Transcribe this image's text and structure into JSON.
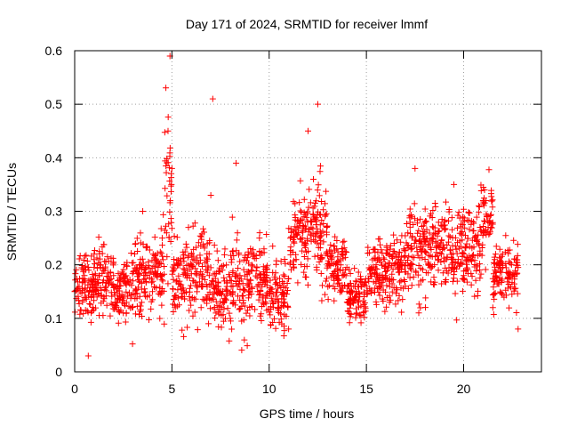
{
  "chart_data": {
    "type": "scatter",
    "title": "Day 171 of 2024, SRMTID for receiver lmmf",
    "xlabel": "GPS time / hours",
    "ylabel": "SRMTID / TECUs",
    "xlim": [
      0,
      24
    ],
    "ylim": [
      0,
      0.6
    ],
    "xticks": [
      0,
      5,
      10,
      15,
      20
    ],
    "yticks": [
      0,
      0.1,
      0.2,
      0.3,
      0.4,
      0.5,
      0.6
    ],
    "xtick_labels": [
      "0",
      "5",
      "10",
      "15",
      "20"
    ],
    "ytick_labels": [
      "0",
      "0.1",
      "0.2",
      "0.3",
      "0.4",
      "0.5",
      "0.6"
    ],
    "grid": true,
    "marker": "+",
    "color": "#ff0000",
    "x_extent_hours": [
      0,
      22.8
    ],
    "sample_points": [
      {
        "x": 0.0,
        "y": 0.15
      },
      {
        "x": 0.5,
        "y": 0.18
      },
      {
        "x": 0.7,
        "y": 0.03
      },
      {
        "x": 1.0,
        "y": 0.22
      },
      {
        "x": 1.5,
        "y": 0.14
      },
      {
        "x": 2.0,
        "y": 0.18
      },
      {
        "x": 2.5,
        "y": 0.11
      },
      {
        "x": 3.0,
        "y": 0.17
      },
      {
        "x": 3.5,
        "y": 0.3
      },
      {
        "x": 4.0,
        "y": 0.15
      },
      {
        "x": 4.5,
        "y": 0.25
      },
      {
        "x": 4.8,
        "y": 0.45
      },
      {
        "x": 4.9,
        "y": 0.59
      },
      {
        "x": 5.0,
        "y": 0.38
      },
      {
        "x": 5.5,
        "y": 0.14
      },
      {
        "x": 6.0,
        "y": 0.2
      },
      {
        "x": 6.5,
        "y": 0.12
      },
      {
        "x": 7.0,
        "y": 0.33
      },
      {
        "x": 7.1,
        "y": 0.51
      },
      {
        "x": 7.5,
        "y": 0.15
      },
      {
        "x": 8.0,
        "y": 0.1
      },
      {
        "x": 8.3,
        "y": 0.39
      },
      {
        "x": 8.5,
        "y": 0.18
      },
      {
        "x": 9.0,
        "y": 0.15
      },
      {
        "x": 9.5,
        "y": 0.25
      },
      {
        "x": 10.0,
        "y": 0.15
      },
      {
        "x": 10.5,
        "y": 0.12
      },
      {
        "x": 11.0,
        "y": 0.08
      },
      {
        "x": 11.5,
        "y": 0.26
      },
      {
        "x": 12.0,
        "y": 0.45
      },
      {
        "x": 12.5,
        "y": 0.5
      },
      {
        "x": 13.0,
        "y": 0.22
      },
      {
        "x": 13.5,
        "y": 0.2
      },
      {
        "x": 14.0,
        "y": 0.15
      },
      {
        "x": 14.5,
        "y": 0.11
      },
      {
        "x": 15.0,
        "y": 0.16
      },
      {
        "x": 15.5,
        "y": 0.2
      },
      {
        "x": 16.0,
        "y": 0.18
      },
      {
        "x": 16.5,
        "y": 0.22
      },
      {
        "x": 17.0,
        "y": 0.16
      },
      {
        "x": 17.5,
        "y": 0.38
      },
      {
        "x": 18.0,
        "y": 0.25
      },
      {
        "x": 18.5,
        "y": 0.2
      },
      {
        "x": 19.0,
        "y": 0.28
      },
      {
        "x": 19.5,
        "y": 0.35
      },
      {
        "x": 20.0,
        "y": 0.18
      },
      {
        "x": 20.5,
        "y": 0.28
      },
      {
        "x": 21.0,
        "y": 0.32
      },
      {
        "x": 21.5,
        "y": 0.12
      },
      {
        "x": 22.0,
        "y": 0.22
      },
      {
        "x": 22.5,
        "y": 0.18
      },
      {
        "x": 22.8,
        "y": 0.08
      }
    ],
    "clusters": [
      {
        "x_start": 0.0,
        "x_end": 1.0,
        "y_center": 0.16,
        "y_spread": 0.05
      },
      {
        "x_start": 1.0,
        "x_end": 2.0,
        "y_center": 0.17,
        "y_spread": 0.05
      },
      {
        "x_start": 2.0,
        "x_end": 3.0,
        "y_center": 0.15,
        "y_spread": 0.05
      },
      {
        "x_start": 3.0,
        "x_end": 4.0,
        "y_center": 0.18,
        "y_spread": 0.06
      },
      {
        "x_start": 4.0,
        "x_end": 4.6,
        "y_center": 0.19,
        "y_spread": 0.06
      },
      {
        "x_start": 4.6,
        "x_end": 5.0,
        "y_center": 0.34,
        "y_spread": 0.12
      },
      {
        "x_start": 5.0,
        "x_end": 6.0,
        "y_center": 0.17,
        "y_spread": 0.06
      },
      {
        "x_start": 6.0,
        "x_end": 7.0,
        "y_center": 0.18,
        "y_spread": 0.07
      },
      {
        "x_start": 7.0,
        "x_end": 8.0,
        "y_center": 0.15,
        "y_spread": 0.06
      },
      {
        "x_start": 8.0,
        "x_end": 9.0,
        "y_center": 0.16,
        "y_spread": 0.07
      },
      {
        "x_start": 9.0,
        "x_end": 10.0,
        "y_center": 0.17,
        "y_spread": 0.06
      },
      {
        "x_start": 10.0,
        "x_end": 11.0,
        "y_center": 0.14,
        "y_spread": 0.05
      },
      {
        "x_start": 11.0,
        "x_end": 12.0,
        "y_center": 0.25,
        "y_spread": 0.07
      },
      {
        "x_start": 12.0,
        "x_end": 13.0,
        "y_center": 0.27,
        "y_spread": 0.08
      },
      {
        "x_start": 13.0,
        "x_end": 14.0,
        "y_center": 0.19,
        "y_spread": 0.05
      },
      {
        "x_start": 14.0,
        "x_end": 15.0,
        "y_center": 0.14,
        "y_spread": 0.04
      },
      {
        "x_start": 15.0,
        "x_end": 16.0,
        "y_center": 0.18,
        "y_spread": 0.05
      },
      {
        "x_start": 16.0,
        "x_end": 17.0,
        "y_center": 0.19,
        "y_spread": 0.05
      },
      {
        "x_start": 17.0,
        "x_end": 18.0,
        "y_center": 0.22,
        "y_spread": 0.07
      },
      {
        "x_start": 18.0,
        "x_end": 19.0,
        "y_center": 0.24,
        "y_spread": 0.06
      },
      {
        "x_start": 19.0,
        "x_end": 20.0,
        "y_center": 0.22,
        "y_spread": 0.07
      },
      {
        "x_start": 20.0,
        "x_end": 21.0,
        "y_center": 0.24,
        "y_spread": 0.07
      },
      {
        "x_start": 21.0,
        "x_end": 21.5,
        "y_center": 0.28,
        "y_spread": 0.06
      },
      {
        "x_start": 21.5,
        "x_end": 22.8,
        "y_center": 0.18,
        "y_spread": 0.05
      }
    ]
  }
}
